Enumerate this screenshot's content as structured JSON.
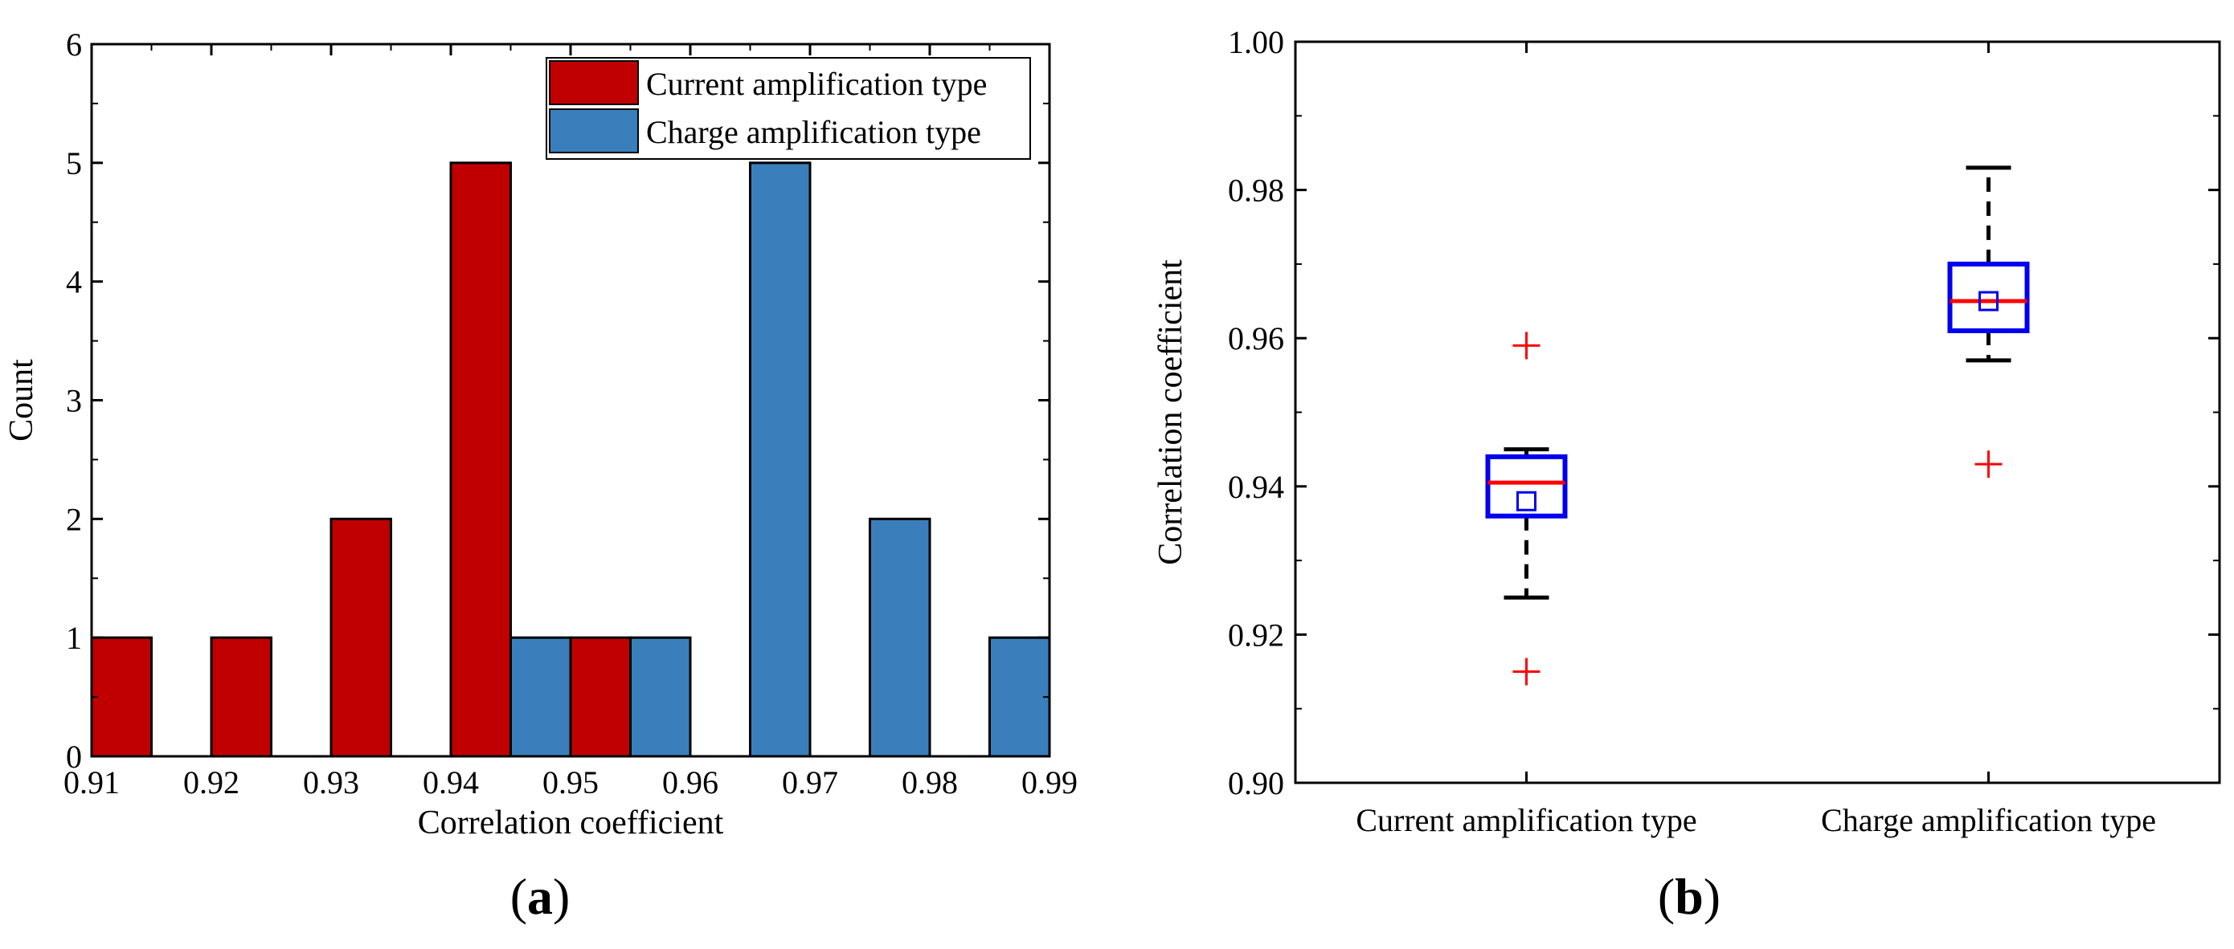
{
  "panels": {
    "a": {
      "open": "(",
      "letter": "a",
      "close": ")"
    },
    "b": {
      "open": "(",
      "letter": "b",
      "close": ")"
    }
  },
  "chart_data": [
    {
      "type": "bar",
      "subtype": "histogram",
      "panel": "a",
      "xlabel": "Correlation coefficient",
      "ylabel": "Count",
      "xlim": [
        0.91,
        0.99
      ],
      "ylim": [
        0,
        6
      ],
      "bin_width": 0.005,
      "x_ticks": [
        "0.91",
        "0.92",
        "0.93",
        "0.94",
        "0.95",
        "0.96",
        "0.97",
        "0.98",
        "0.99"
      ],
      "y_ticks": [
        "0",
        "1",
        "2",
        "3",
        "4",
        "5",
        "6"
      ],
      "legend_position": "top-right",
      "series": [
        {
          "name": "Current amplification type",
          "color": "#c00000",
          "bins": [
            {
              "start": 0.91,
              "end": 0.915,
              "count": 1
            },
            {
              "start": 0.92,
              "end": 0.925,
              "count": 1
            },
            {
              "start": 0.93,
              "end": 0.935,
              "count": 2
            },
            {
              "start": 0.94,
              "end": 0.945,
              "count": 5
            },
            {
              "start": 0.95,
              "end": 0.955,
              "count": 1
            }
          ]
        },
        {
          "name": "Charge amplification type",
          "color": "#3a7fbb",
          "bins": [
            {
              "start": 0.945,
              "end": 0.95,
              "count": 1
            },
            {
              "start": 0.955,
              "end": 0.96,
              "count": 1
            },
            {
              "start": 0.965,
              "end": 0.97,
              "count": 5
            },
            {
              "start": 0.975,
              "end": 0.98,
              "count": 2
            },
            {
              "start": 0.985,
              "end": 0.99,
              "count": 1
            }
          ]
        }
      ]
    },
    {
      "type": "box",
      "panel": "b",
      "ylabel": "Correlation coefficient",
      "ylim": [
        0.9,
        1.0
      ],
      "y_ticks": [
        "0.90",
        "0.92",
        "0.94",
        "0.96",
        "0.98",
        "1.00"
      ],
      "colors": {
        "box": "#0000ee",
        "median": "#ff0000",
        "whisker": "#000000",
        "outlier": "#ff0000",
        "mean": "#0000ee"
      },
      "categories": [
        {
          "name": "Current amplification type",
          "whisker_low": 0.925,
          "q1": 0.936,
          "median": 0.9405,
          "q3": 0.944,
          "whisker_high": 0.945,
          "mean": 0.938,
          "outliers": [
            0.959,
            0.915
          ]
        },
        {
          "name": "Charge amplification type",
          "whisker_low": 0.957,
          "q1": 0.961,
          "median": 0.965,
          "q3": 0.97,
          "whisker_high": 0.983,
          "mean": 0.965,
          "outliers": [
            0.943
          ]
        }
      ]
    }
  ]
}
